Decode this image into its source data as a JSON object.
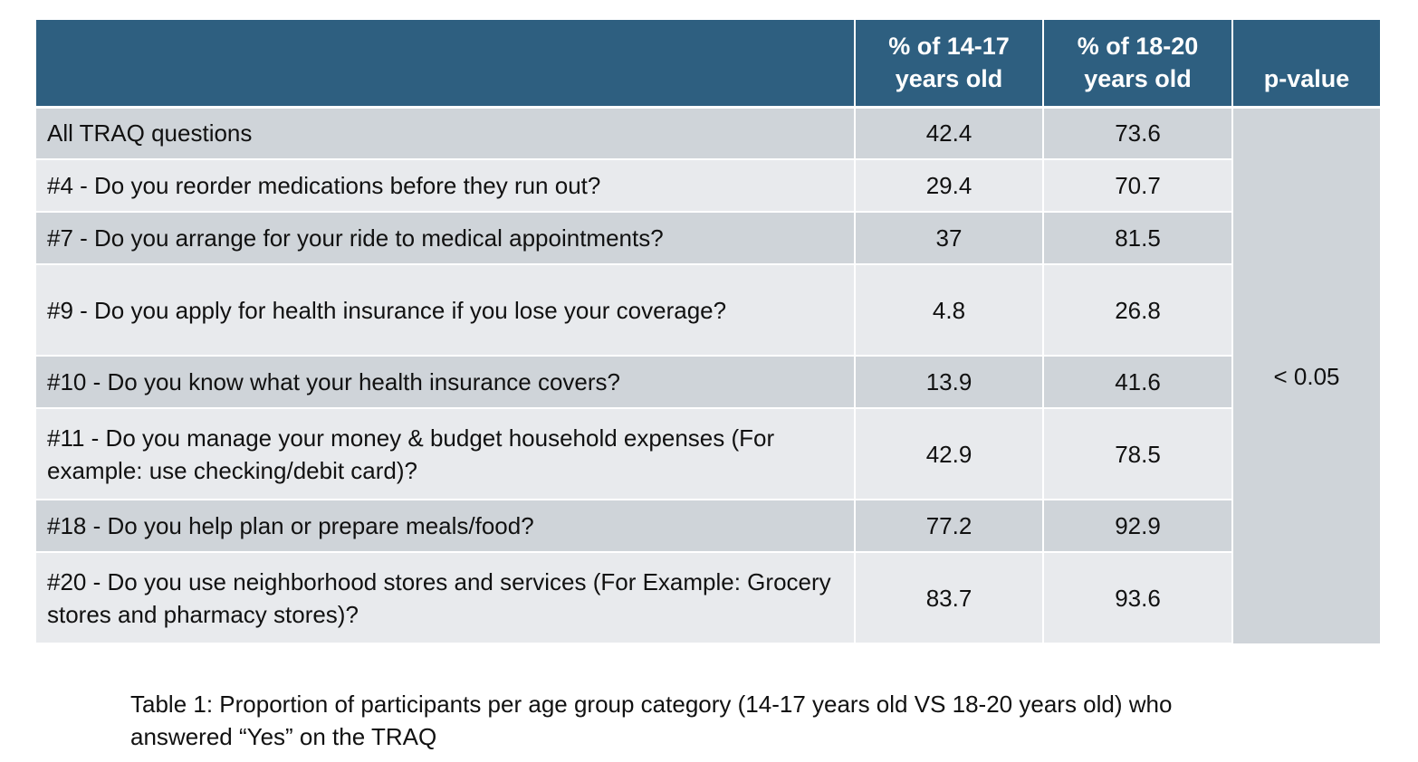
{
  "table": {
    "headers": {
      "question": "",
      "group_a": "% of 14-17 years old",
      "group_b": "% of 18-20 years old",
      "p_value": "p-value"
    },
    "rows": [
      {
        "question": "All TRAQ questions",
        "a": "42.4",
        "b": "73.6"
      },
      {
        "question": "#4 - Do you reorder medications before they run out?",
        "a": "29.4",
        "b": "70.7"
      },
      {
        "question": "#7 - Do you arrange for your ride to medical appointments?",
        "a": "37",
        "b": "81.5"
      },
      {
        "question": "#9 - Do you apply for health insurance if you lose your coverage?",
        "a": "4.8",
        "b": "26.8"
      },
      {
        "question": "#10 - Do you know what your health insurance covers?",
        "a": "13.9",
        "b": "41.6"
      },
      {
        "question": "#11 - Do you manage your money & budget household expenses (For example: use checking/debit card)?",
        "a": "42.9",
        "b": "78.5"
      },
      {
        "question": "#18 - Do you help plan or prepare meals/food?",
        "a": "77.2",
        "b": "92.9"
      },
      {
        "question": "#20 - Do you use neighborhood stores and services (For Example: Grocery stores and pharmacy stores)?",
        "a": "83.7",
        "b": "93.6"
      }
    ],
    "p_value": "< 0.05"
  },
  "caption": "Table 1: Proportion of participants per age group category (14-17 years old VS 18-20 years old) who answered “Yes” on the TRAQ"
}
